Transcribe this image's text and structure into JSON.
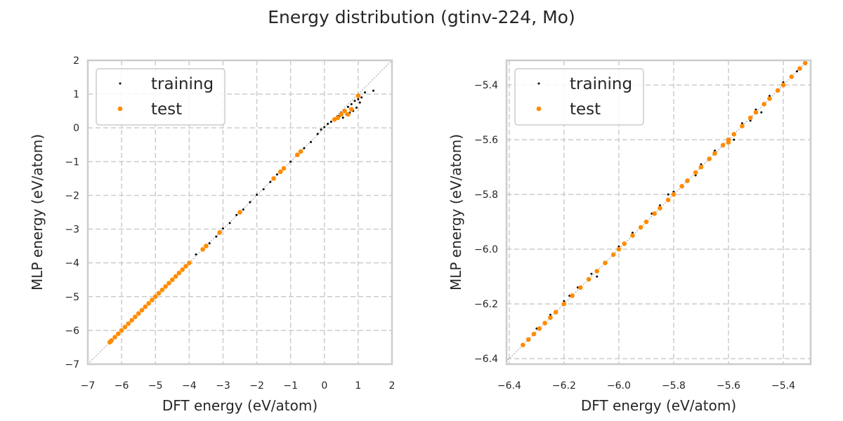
{
  "suptitle": "Energy distribution (gtinv-224, Mo)",
  "colors": {
    "training": "#000000",
    "test": "#ff8c00",
    "grid": "#cccccc"
  },
  "chart_data": [
    {
      "type": "scatter",
      "xlabel": "DFT energy (eV/atom)",
      "ylabel": "MLP energy (eV/atom)",
      "xlim": [
        -7,
        2
      ],
      "ylim": [
        -7,
        2
      ],
      "xticks": [
        "−7",
        "−6",
        "−5",
        "−4",
        "−3",
        "−2",
        "−1",
        "0",
        "1",
        "2"
      ],
      "yticks": [
        "−7",
        "−6",
        "−5",
        "−4",
        "−3",
        "−2",
        "−1",
        "0",
        "1",
        "2"
      ],
      "xtick_values": [
        -7,
        -6,
        -5,
        -4,
        -3,
        -2,
        -1,
        0,
        1,
        2
      ],
      "ytick_values": [
        -7,
        -6,
        -5,
        -4,
        -3,
        -2,
        -1,
        0,
        1,
        2
      ],
      "grid": true,
      "legend_position": "top-left",
      "diagonal": true,
      "series": [
        {
          "name": "training",
          "points": [
            [
              -6.35,
              -6.35
            ],
            [
              -6.1,
              -6.1
            ],
            [
              -5.8,
              -5.8
            ],
            [
              -5.5,
              -5.5
            ],
            [
              -5.2,
              -5.2
            ],
            [
              -4.9,
              -4.9
            ],
            [
              -4.6,
              -4.6
            ],
            [
              -4.3,
              -4.32
            ],
            [
              -4.0,
              -4.02
            ],
            [
              -3.8,
              -3.75
            ],
            [
              -3.6,
              -3.58
            ],
            [
              -3.4,
              -3.42
            ],
            [
              -3.2,
              -3.22
            ],
            [
              -3.0,
              -2.98
            ],
            [
              -2.8,
              -2.82
            ],
            [
              -2.6,
              -2.58
            ],
            [
              -2.4,
              -2.42
            ],
            [
              -2.2,
              -2.2
            ],
            [
              -2.0,
              -1.98
            ],
            [
              -1.8,
              -1.82
            ],
            [
              -1.6,
              -1.6
            ],
            [
              -1.4,
              -1.38
            ],
            [
              -1.2,
              -1.2
            ],
            [
              -1.0,
              -1.0
            ],
            [
              -0.8,
              -0.8
            ],
            [
              -0.6,
              -0.6
            ],
            [
              -0.4,
              -0.42
            ],
            [
              -0.2,
              -0.18
            ],
            [
              -0.1,
              -0.05
            ],
            [
              0.0,
              0.02
            ],
            [
              0.1,
              0.12
            ],
            [
              0.2,
              0.18
            ],
            [
              0.3,
              0.28
            ],
            [
              0.4,
              0.35
            ],
            [
              0.5,
              0.45
            ],
            [
              0.6,
              0.52
            ],
            [
              0.7,
              0.62
            ],
            [
              0.8,
              0.7
            ],
            [
              0.9,
              0.8
            ],
            [
              1.0,
              0.85
            ],
            [
              1.1,
              0.9
            ],
            [
              1.2,
              1.05
            ],
            [
              1.45,
              1.1
            ],
            [
              0.95,
              0.6
            ],
            [
              0.85,
              0.5
            ],
            [
              0.75,
              0.45
            ],
            [
              0.65,
              0.4
            ],
            [
              1.05,
              0.75
            ],
            [
              0.55,
              0.3
            ],
            [
              0.45,
              0.35
            ]
          ]
        },
        {
          "name": "test",
          "points": [
            [
              -6.35,
              -6.35
            ],
            [
              -6.3,
              -6.3
            ],
            [
              -6.2,
              -6.2
            ],
            [
              -6.1,
              -6.1
            ],
            [
              -6.0,
              -6.0
            ],
            [
              -5.9,
              -5.9
            ],
            [
              -5.8,
              -5.8
            ],
            [
              -5.7,
              -5.7
            ],
            [
              -5.6,
              -5.6
            ],
            [
              -5.5,
              -5.5
            ],
            [
              -5.4,
              -5.4
            ],
            [
              -5.3,
              -5.3
            ],
            [
              -5.2,
              -5.2
            ],
            [
              -5.1,
              -5.1
            ],
            [
              -5.0,
              -5.0
            ],
            [
              -4.9,
              -4.9
            ],
            [
              -4.8,
              -4.8
            ],
            [
              -4.7,
              -4.7
            ],
            [
              -4.6,
              -4.6
            ],
            [
              -4.5,
              -4.5
            ],
            [
              -4.4,
              -4.4
            ],
            [
              -4.3,
              -4.3
            ],
            [
              -4.2,
              -4.2
            ],
            [
              -4.1,
              -4.1
            ],
            [
              -4.0,
              -4.0
            ],
            [
              -3.6,
              -3.6
            ],
            [
              -3.5,
              -3.5
            ],
            [
              -3.1,
              -3.1
            ],
            [
              -2.5,
              -2.5
            ],
            [
              -1.5,
              -1.5
            ],
            [
              -1.3,
              -1.3
            ],
            [
              -1.2,
              -1.2
            ],
            [
              -0.8,
              -0.8
            ],
            [
              -0.7,
              -0.7
            ],
            [
              0.3,
              0.25
            ],
            [
              0.4,
              0.3
            ],
            [
              0.5,
              0.4
            ],
            [
              0.6,
              0.5
            ],
            [
              0.7,
              0.4
            ],
            [
              0.8,
              0.55
            ],
            [
              1.0,
              0.95
            ]
          ]
        }
      ]
    },
    {
      "type": "scatter",
      "xlabel": "DFT energy (eV/atom)",
      "ylabel": "MLP energy (eV/atom)",
      "xlim": [
        -6.41,
        -5.3
      ],
      "ylim": [
        -6.42,
        -5.31
      ],
      "xticks": [
        "−6.4",
        "−6.2",
        "−6.0",
        "−5.8",
        "−5.6",
        "−5.4"
      ],
      "yticks": [
        "−6.4",
        "−6.2",
        "−6.0",
        "−5.8",
        "−5.6",
        "−5.4"
      ],
      "xtick_values": [
        -6.4,
        -6.2,
        -6.0,
        -5.8,
        -5.6,
        -5.4
      ],
      "ytick_values": [
        -6.4,
        -6.2,
        -6.0,
        -5.8,
        -5.6,
        -5.4
      ],
      "grid": true,
      "legend_position": "top-left",
      "diagonal": true,
      "series": [
        {
          "name": "training",
          "points": [
            [
              -6.35,
              -6.35
            ],
            [
              -6.3,
              -6.29
            ],
            [
              -6.25,
              -6.24
            ],
            [
              -6.2,
              -6.19
            ],
            [
              -6.15,
              -6.14
            ],
            [
              -6.1,
              -6.09
            ],
            [
              -6.05,
              -6.05
            ],
            [
              -6.0,
              -5.99
            ],
            [
              -5.95,
              -5.94
            ],
            [
              -5.9,
              -5.9
            ],
            [
              -5.85,
              -5.84
            ],
            [
              -5.8,
              -5.79
            ],
            [
              -5.75,
              -5.75
            ],
            [
              -5.7,
              -5.69
            ],
            [
              -5.65,
              -5.64
            ],
            [
              -5.6,
              -5.6
            ],
            [
              -5.55,
              -5.54
            ],
            [
              -5.5,
              -5.49
            ],
            [
              -5.45,
              -5.44
            ],
            [
              -5.4,
              -5.39
            ],
            [
              -5.35,
              -5.35
            ],
            [
              -5.32,
              -5.32
            ],
            [
              -5.48,
              -5.5
            ],
            [
              -5.52,
              -5.53
            ],
            [
              -5.58,
              -5.6
            ],
            [
              -5.72,
              -5.73
            ],
            [
              -5.82,
              -5.8
            ],
            [
              -5.88,
              -5.87
            ],
            [
              -6.08,
              -6.1
            ],
            [
              -6.18,
              -6.17
            ]
          ]
        },
        {
          "name": "test",
          "points": [
            [
              -6.35,
              -6.35
            ],
            [
              -6.33,
              -6.33
            ],
            [
              -6.31,
              -6.31
            ],
            [
              -6.29,
              -6.29
            ],
            [
              -6.27,
              -6.27
            ],
            [
              -6.25,
              -6.25
            ],
            [
              -6.23,
              -6.23
            ],
            [
              -6.2,
              -6.2
            ],
            [
              -6.17,
              -6.17
            ],
            [
              -6.14,
              -6.14
            ],
            [
              -6.11,
              -6.11
            ],
            [
              -6.08,
              -6.08
            ],
            [
              -6.05,
              -6.05
            ],
            [
              -6.02,
              -6.02
            ],
            [
              -6.0,
              -6.0
            ],
            [
              -5.98,
              -5.98
            ],
            [
              -5.95,
              -5.95
            ],
            [
              -5.92,
              -5.92
            ],
            [
              -5.9,
              -5.9
            ],
            [
              -5.87,
              -5.87
            ],
            [
              -5.85,
              -5.85
            ],
            [
              -5.82,
              -5.82
            ],
            [
              -5.8,
              -5.8
            ],
            [
              -5.77,
              -5.77
            ],
            [
              -5.75,
              -5.75
            ],
            [
              -5.72,
              -5.72
            ],
            [
              -5.7,
              -5.7
            ],
            [
              -5.67,
              -5.67
            ],
            [
              -5.65,
              -5.65
            ],
            [
              -5.62,
              -5.62
            ],
            [
              -5.6,
              -5.6
            ],
            [
              -5.6,
              -5.61
            ],
            [
              -5.58,
              -5.58
            ],
            [
              -5.55,
              -5.55
            ],
            [
              -5.52,
              -5.52
            ],
            [
              -5.5,
              -5.5
            ],
            [
              -5.47,
              -5.47
            ],
            [
              -5.45,
              -5.45
            ],
            [
              -5.42,
              -5.42
            ],
            [
              -5.4,
              -5.4
            ],
            [
              -5.37,
              -5.37
            ],
            [
              -5.34,
              -5.34
            ],
            [
              -5.32,
              -5.32
            ]
          ]
        }
      ]
    }
  ]
}
